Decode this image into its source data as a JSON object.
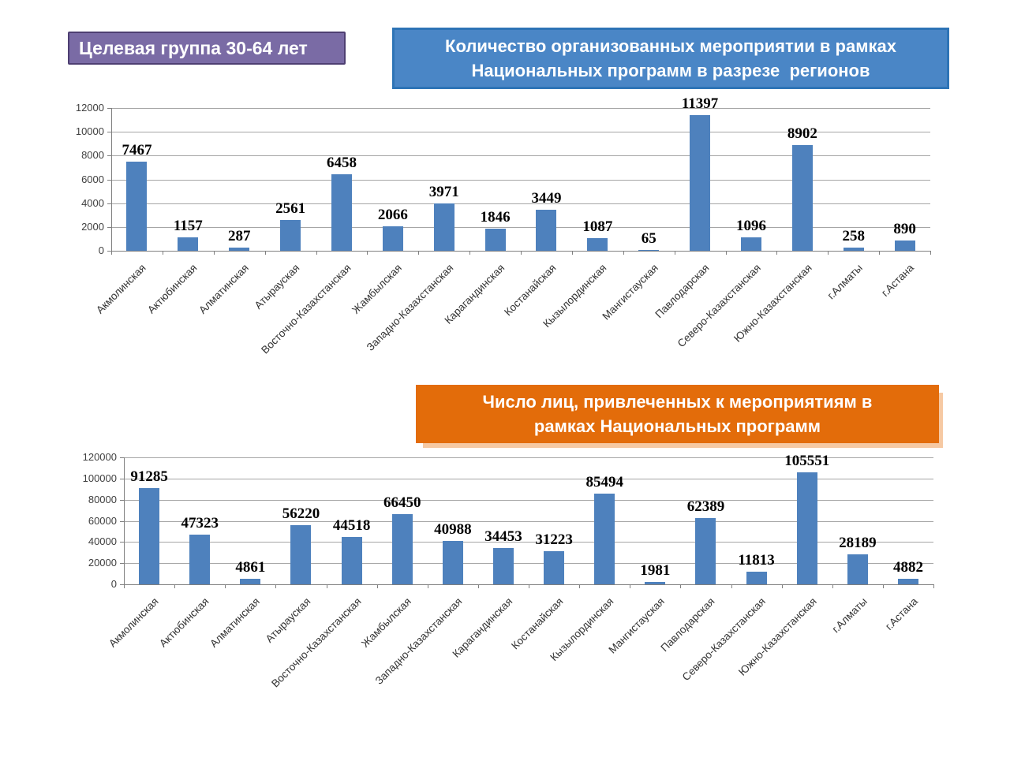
{
  "badge": {
    "label": "Целевая группа 30-64 лет"
  },
  "colors": {
    "bar": "#4E81BD",
    "gridline": "#A6A6A6",
    "axis": "#808080",
    "badge_bg": "#7A6BA5",
    "badge_border": "#4E3F72",
    "blue_title_bg": "#4A86C6",
    "blue_title_border": "#2E74B6",
    "orange_title_bg": "#E36C0A"
  },
  "chart_data": [
    {
      "type": "bar",
      "title": "Количество организованных мероприятии в рамках\nНациональных программ в разрезе  регионов",
      "categories": [
        "Акмолинская",
        "Актюбинская",
        "Алматинская",
        "Атырауская",
        "Восточно-Казахстанская",
        "Жамбылская",
        "Западно-Казахстанская",
        "Карагандинская",
        "Костанайская",
        "Кызылординская",
        "Мангистауская",
        "Павлодарская",
        "Северо-Казахстанская",
        "Южно-Казахстанская",
        "г.Алматы",
        "г.Астана"
      ],
      "values": [
        7467,
        1157,
        287,
        2561,
        6458,
        2066,
        3971,
        1846,
        3449,
        1087,
        65,
        11397,
        1096,
        8902,
        258,
        890
      ],
      "xlabel": "",
      "ylabel": "",
      "ylim": [
        0,
        12000
      ],
      "ytick_step": 2000,
      "yticks": [
        0,
        2000,
        4000,
        6000,
        8000,
        10000,
        12000
      ],
      "grid": true,
      "legend": "none",
      "bar_color": "#4E81BD",
      "value_labels": "above bars, bold serif"
    },
    {
      "type": "bar",
      "title": "Число лиц, привлеченных к мероприятиям в\nрамках Национальных программ",
      "categories": [
        "Акмолинская",
        "Актюбинская",
        "Алматинская",
        "Атырауская",
        "Восточно-Казахстанская",
        "Жамбылская",
        "Западно-Казахстанская",
        "Карагандинская",
        "Костанайская",
        "Кызылординская",
        "Мангистауская",
        "Павлодарская",
        "Северо-Казахстанская",
        "Южно-Казахстанская",
        "г.Алматы",
        "г.Астана"
      ],
      "values": [
        91285,
        47323,
        4861,
        56220,
        44518,
        66450,
        40988,
        34453,
        31223,
        85494,
        1981,
        62389,
        11813,
        105551,
        28189,
        4882
      ],
      "xlabel": "",
      "ylabel": "",
      "ylim": [
        0,
        120000
      ],
      "ytick_step": 20000,
      "yticks": [
        0,
        20000,
        40000,
        60000,
        80000,
        100000,
        120000
      ],
      "grid": true,
      "legend": "none",
      "bar_color": "#4E81BD",
      "value_labels": "above bars, bold serif"
    }
  ]
}
